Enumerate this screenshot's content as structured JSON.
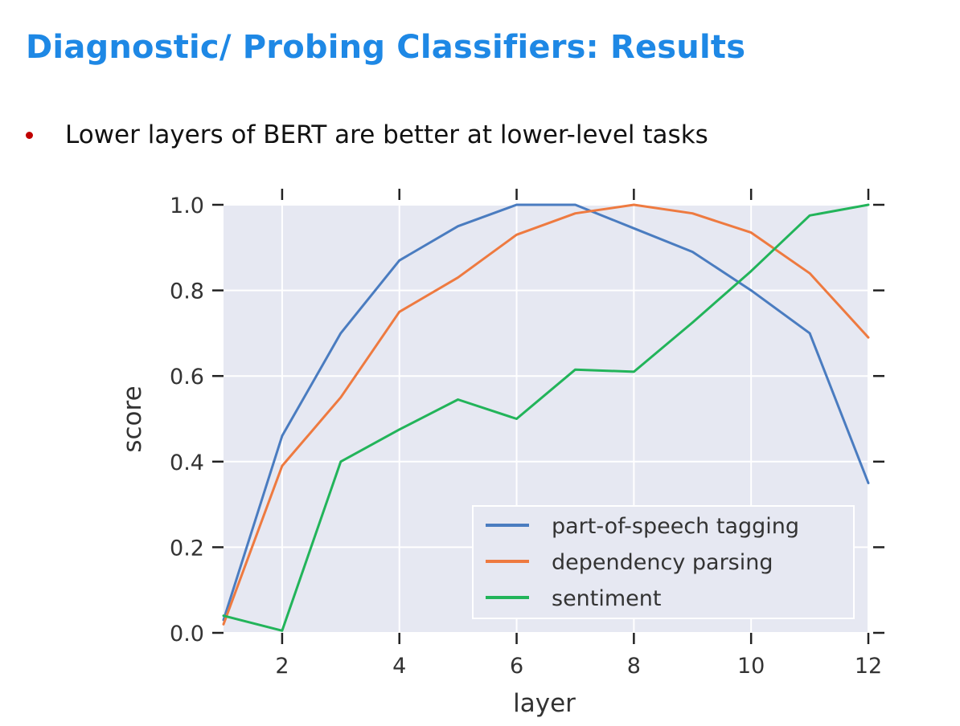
{
  "slide": {
    "title": "Diagnostic/ Probing Classifiers: Results",
    "bullet": "Lower layers of BERT are better at lower-level tasks",
    "bullet_color": "#c00000",
    "title_color": "#1e88e5"
  },
  "chart_data": {
    "type": "line",
    "xlabel": "layer",
    "ylabel": "score",
    "xlim": [
      1,
      12
    ],
    "ylim": [
      0,
      1
    ],
    "x_ticks": [
      2,
      4,
      6,
      8,
      10,
      12
    ],
    "y_ticks": [
      0.0,
      0.2,
      0.4,
      0.6,
      0.8,
      1.0
    ],
    "x_tick_labels": [
      "2",
      "4",
      "6",
      "8",
      "10",
      "12"
    ],
    "y_tick_labels": [
      "0.0",
      "0.2",
      "0.4",
      "0.6",
      "0.8",
      "1.0"
    ],
    "grid": true,
    "background": "#e6e8f2",
    "legend_position": "lower-right",
    "x": [
      1,
      2,
      3,
      4,
      5,
      6,
      7,
      8,
      9,
      10,
      11,
      12
    ],
    "series": [
      {
        "name": "part-of-speech tagging",
        "color": "#4a7cc0",
        "values": [
          0.03,
          0.46,
          0.7,
          0.87,
          0.95,
          1.0,
          1.0,
          0.945,
          0.89,
          0.8,
          0.7,
          0.35
        ]
      },
      {
        "name": "dependency parsing",
        "color": "#ee7a40",
        "values": [
          0.02,
          0.39,
          0.55,
          0.75,
          0.83,
          0.93,
          0.98,
          1.0,
          0.98,
          0.935,
          0.84,
          0.69
        ]
      },
      {
        "name": "sentiment",
        "color": "#22b45a",
        "values": [
          0.04,
          0.005,
          0.4,
          0.475,
          0.545,
          0.5,
          0.615,
          0.61,
          0.725,
          0.845,
          0.975,
          1.0
        ]
      }
    ]
  }
}
